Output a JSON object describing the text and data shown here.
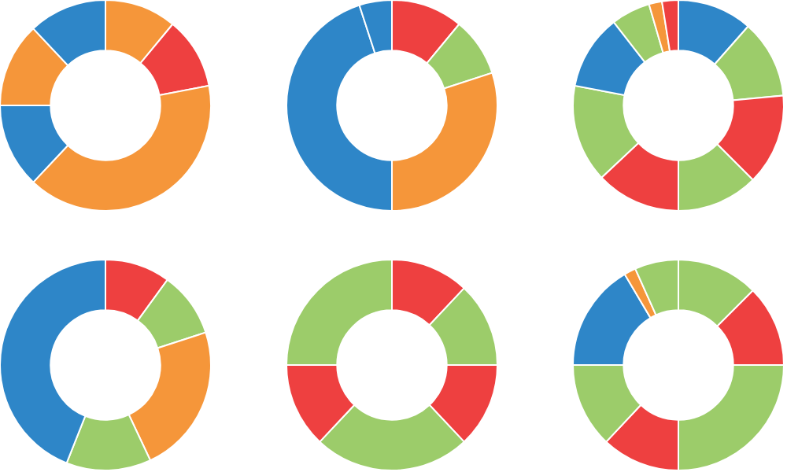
{
  "chart_data": [
    {
      "type": "donut",
      "categories": [
        null,
        null,
        null,
        null,
        null,
        null
      ],
      "values": [
        11,
        11,
        40,
        13,
        13,
        12
      ],
      "colors": [
        "#f5963a",
        "#ee4040",
        "#f5963a",
        "#2e86c8",
        "#f5963a",
        "#2e86c8"
      ]
    },
    {
      "type": "donut",
      "categories": [
        null,
        null,
        null,
        null,
        null
      ],
      "values": [
        11,
        9,
        30,
        45,
        5
      ],
      "colors": [
        "#ee4040",
        "#9ccc6a",
        "#f5963a",
        "#2e86c8",
        "#2e86c8"
      ]
    },
    {
      "type": "donut",
      "categories": [
        null,
        null,
        null,
        null,
        null,
        null,
        null,
        null,
        null,
        null
      ],
      "values": [
        11.5,
        12,
        14,
        12.5,
        13,
        15,
        11.5,
        6,
        2,
        2.5
      ],
      "colors": [
        "#2e86c8",
        "#9ccc6a",
        "#ee4040",
        "#9ccc6a",
        "#ee4040",
        "#9ccc6a",
        "#2e86c8",
        "#9ccc6a",
        "#f5963a",
        "#ee4040"
      ]
    },
    {
      "type": "donut",
      "categories": [
        null,
        null,
        null,
        null,
        null
      ],
      "values": [
        10,
        10,
        23,
        13,
        44
      ],
      "colors": [
        "#ee4040",
        "#9ccc6a",
        "#f5963a",
        "#9ccc6a",
        "#2e86c8"
      ]
    },
    {
      "type": "donut",
      "categories": [
        null,
        null,
        null,
        null,
        null,
        null
      ],
      "values": [
        12,
        13,
        13,
        24,
        13,
        25
      ],
      "colors": [
        "#ee4040",
        "#9ccc6a",
        "#ee4040",
        "#9ccc6a",
        "#ee4040",
        "#9ccc6a"
      ]
    },
    {
      "type": "donut",
      "categories": [
        null,
        null,
        null,
        null,
        null,
        null,
        null,
        null
      ],
      "values": [
        12.5,
        12.5,
        25,
        12,
        13,
        16.5,
        1.8,
        6.7
      ],
      "colors": [
        "#9ccc6a",
        "#ee4040",
        "#9ccc6a",
        "#ee4040",
        "#9ccc6a",
        "#2e86c8",
        "#f5963a",
        "#9ccc6a"
      ]
    }
  ]
}
